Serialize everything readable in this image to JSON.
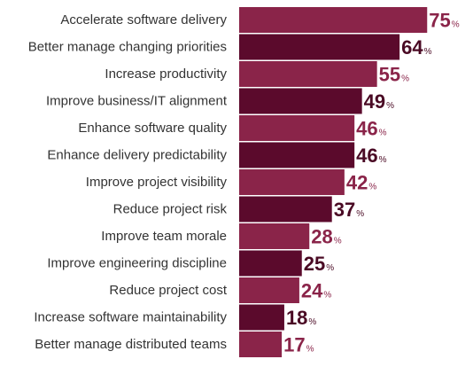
{
  "chart_data": {
    "type": "bar",
    "orientation": "horizontal",
    "categories": [
      "Accelerate software delivery",
      "Better manage changing priorities",
      "Increase productivity",
      "Improve business/IT alignment",
      "Enhance software quality",
      "Enhance delivery predictability",
      "Improve project visibility",
      "Reduce project risk",
      "Improve team morale",
      "Improve engineering discipline",
      "Reduce project cost",
      "Increase software maintainability",
      "Better manage distributed teams"
    ],
    "values": [
      75,
      64,
      55,
      49,
      46,
      46,
      42,
      37,
      28,
      25,
      24,
      18,
      17
    ],
    "value_suffix": "%",
    "xlim": [
      0,
      100
    ],
    "grid": false,
    "legend": "none",
    "colors": {
      "bar_light": "#8a2449",
      "bar_dark": "#5b0a2c",
      "label_light": "#8a2449",
      "label_dark": "#4a0a24"
    }
  }
}
